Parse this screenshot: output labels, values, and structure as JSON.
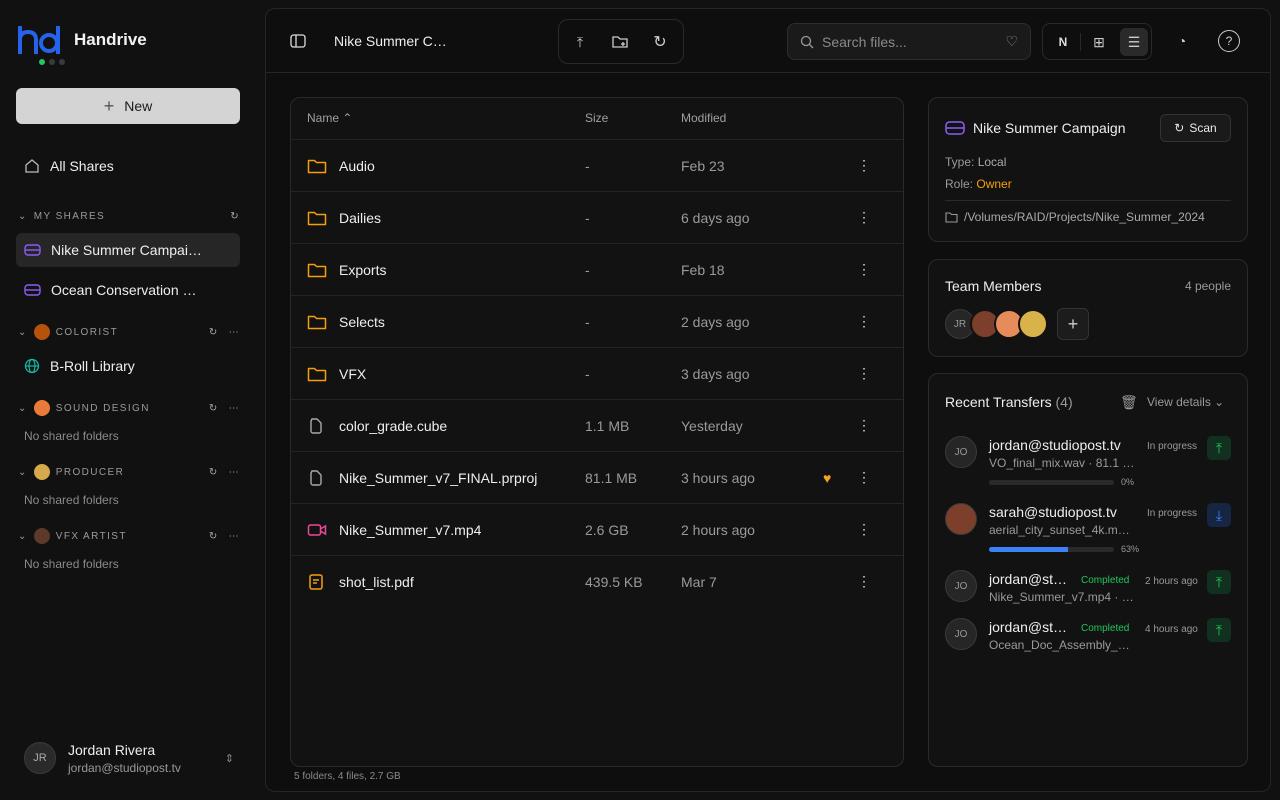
{
  "app": {
    "name": "Handrive",
    "status_colors": [
      "#22c55e",
      "#3a3a3a",
      "#3a3a3a"
    ]
  },
  "sidebar": {
    "new_label": "New",
    "all_shares": "All Shares",
    "my_shares": {
      "title": "MY SHARES",
      "items": [
        {
          "label": "Nike Summer Campai…",
          "selected": true
        },
        {
          "label": "Ocean Conservation …",
          "selected": false
        }
      ]
    },
    "groups": [
      {
        "title": "COLORIST",
        "items": [
          {
            "label": "B-Roll Library"
          }
        ]
      },
      {
        "title": "SOUND DESIGN",
        "empty": "No shared folders"
      },
      {
        "title": "PRODUCER",
        "empty": "No shared folders"
      },
      {
        "title": "VFX ARTIST",
        "empty": "No shared folders"
      }
    ],
    "user": {
      "initials": "JR",
      "name": "Jordan Rivera",
      "email": "jordan@studiopost.tv"
    }
  },
  "header": {
    "title": "Nike Summer C…",
    "search_placeholder": "Search files...",
    "sort_key": "N"
  },
  "files": {
    "columns": {
      "name": "Name",
      "size": "Size",
      "modified": "Modified"
    },
    "rows": [
      {
        "name": "Audio",
        "type": "folder",
        "size": "-",
        "modified": "Feb 23"
      },
      {
        "name": "Dailies",
        "type": "folder",
        "size": "-",
        "modified": "6 days ago"
      },
      {
        "name": "Exports",
        "type": "folder",
        "size": "-",
        "modified": "Feb 18"
      },
      {
        "name": "Selects",
        "type": "folder",
        "size": "-",
        "modified": "2 days ago"
      },
      {
        "name": "VFX",
        "type": "folder",
        "size": "-",
        "modified": "3 days ago"
      },
      {
        "name": "color_grade.cube",
        "type": "file",
        "size": "1.1 MB",
        "modified": "Yesterday"
      },
      {
        "name": "Nike_Summer_v7_FINAL.prproj",
        "type": "file",
        "size": "81.1 MB",
        "modified": "3 hours ago",
        "favorite": true
      },
      {
        "name": "Nike_Summer_v7.mp4",
        "type": "video",
        "size": "2.6 GB",
        "modified": "2 hours ago"
      },
      {
        "name": "shot_list.pdf",
        "type": "pdf",
        "size": "439.5 KB",
        "modified": "Mar 7"
      }
    ],
    "summary": "5 folders, 4 files, 2.7 GB"
  },
  "details": {
    "title": "Nike Summer Campaign",
    "scan_label": "Scan",
    "type_label": "Type:",
    "type_value": "Local",
    "role_label": "Role:",
    "role_value": "Owner",
    "path": "/Volumes/RAID/Projects/Nike_Summer_2024"
  },
  "team": {
    "title": "Team Members",
    "count": "4 people",
    "first_initials": "JR"
  },
  "transfers": {
    "title": "Recent Transfers",
    "count": "(4)",
    "view_details": "View details",
    "items": [
      {
        "initials": "JO",
        "email": "jordan@studiopost.tv",
        "file": "VO_final_mix.wav · 81.1 …",
        "status": "In progress",
        "direction": "upload",
        "progress": 0,
        "progress_label": "0%"
      },
      {
        "initials": "",
        "email": "sarah@studiopost.tv",
        "file": "aerial_city_sunset_4k.m…",
        "status": "In progress",
        "direction": "download",
        "progress": 63,
        "progress_label": "63%"
      },
      {
        "initials": "JO",
        "email": "jordan@st…",
        "file": "Nike_Summer_v7.mp4 · …",
        "status": "Completed",
        "time": "2 hours ago",
        "direction": "upload"
      },
      {
        "initials": "JO",
        "email": "jordan@st…",
        "file": "Ocean_Doc_Assembly_…",
        "status": "Completed",
        "time": "4 hours ago",
        "direction": "upload"
      }
    ]
  }
}
